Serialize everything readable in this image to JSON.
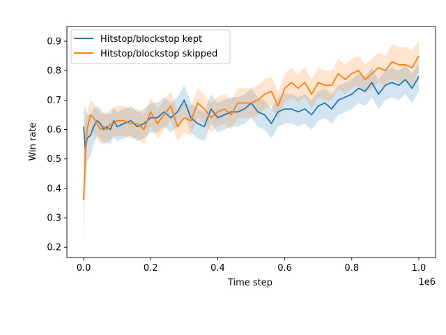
{
  "chart_data": {
    "type": "line",
    "xlabel": "Time step",
    "ylabel": "Win rate",
    "x_offset_label": "1e6",
    "xlim": [
      -50000,
      1050000
    ],
    "ylim": [
      0.165,
      0.95
    ],
    "x_ticks": [
      0,
      200000,
      400000,
      600000,
      800000,
      1000000
    ],
    "x_tick_labels": [
      "0.0",
      "0.2",
      "0.4",
      "0.6",
      "0.8",
      "1.0"
    ],
    "y_ticks": [
      0.2,
      0.3,
      0.4,
      0.5,
      0.6,
      0.7,
      0.8,
      0.9
    ],
    "y_tick_labels": [
      "0.2",
      "0.3",
      "0.4",
      "0.5",
      "0.6",
      "0.7",
      "0.8",
      "0.9"
    ],
    "grid": false,
    "legend_position": "top-left",
    "x": [
      0,
      5000,
      10000,
      20000,
      30000,
      40000,
      50000,
      60000,
      70000,
      80000,
      90000,
      100000,
      120000,
      140000,
      160000,
      180000,
      200000,
      220000,
      240000,
      260000,
      280000,
      300000,
      320000,
      340000,
      360000,
      380000,
      400000,
      420000,
      440000,
      460000,
      480000,
      500000,
      520000,
      540000,
      560000,
      580000,
      600000,
      620000,
      640000,
      660000,
      680000,
      700000,
      720000,
      740000,
      760000,
      780000,
      800000,
      820000,
      840000,
      860000,
      880000,
      900000,
      920000,
      940000,
      960000,
      980000,
      1000000
    ],
    "series": [
      {
        "name": "Hitstop/blockstop kept",
        "color": "#1f77b4",
        "values": [
          0.61,
          0.53,
          0.57,
          0.58,
          0.61,
          0.63,
          0.62,
          0.6,
          0.61,
          0.6,
          0.63,
          0.61,
          0.62,
          0.63,
          0.61,
          0.62,
          0.64,
          0.64,
          0.66,
          0.64,
          0.66,
          0.7,
          0.64,
          0.62,
          0.61,
          0.67,
          0.64,
          0.65,
          0.66,
          0.66,
          0.67,
          0.69,
          0.66,
          0.65,
          0.62,
          0.66,
          0.67,
          0.67,
          0.66,
          0.67,
          0.65,
          0.68,
          0.69,
          0.67,
          0.7,
          0.71,
          0.72,
          0.74,
          0.73,
          0.76,
          0.72,
          0.75,
          0.76,
          0.75,
          0.77,
          0.74,
          0.78
        ],
        "band": [
          0.05,
          0.15,
          0.08,
          0.07,
          0.06,
          0.05,
          0.05,
          0.05,
          0.05,
          0.05,
          0.05,
          0.05,
          0.05,
          0.05,
          0.05,
          0.05,
          0.05,
          0.05,
          0.05,
          0.05,
          0.05,
          0.05,
          0.05,
          0.05,
          0.05,
          0.05,
          0.05,
          0.05,
          0.05,
          0.05,
          0.05,
          0.05,
          0.05,
          0.05,
          0.05,
          0.05,
          0.05,
          0.05,
          0.05,
          0.05,
          0.05,
          0.05,
          0.05,
          0.05,
          0.05,
          0.05,
          0.05,
          0.05,
          0.05,
          0.05,
          0.05,
          0.05,
          0.05,
          0.05,
          0.05,
          0.05,
          0.05
        ]
      },
      {
        "name": "Hitstop/blockstop skipped",
        "color": "#ff7f0e",
        "values": [
          0.36,
          0.52,
          0.6,
          0.65,
          0.64,
          0.62,
          0.6,
          0.61,
          0.6,
          0.62,
          0.62,
          0.63,
          0.63,
          0.62,
          0.62,
          0.6,
          0.66,
          0.62,
          0.65,
          0.68,
          0.61,
          0.64,
          0.63,
          0.69,
          0.67,
          0.64,
          0.66,
          0.67,
          0.65,
          0.69,
          0.69,
          0.69,
          0.7,
          0.72,
          0.73,
          0.68,
          0.74,
          0.76,
          0.74,
          0.76,
          0.72,
          0.76,
          0.75,
          0.75,
          0.79,
          0.77,
          0.79,
          0.8,
          0.77,
          0.79,
          0.81,
          0.8,
          0.83,
          0.82,
          0.82,
          0.81,
          0.85
        ],
        "band": [
          0.15,
          0.12,
          0.06,
          0.05,
          0.05,
          0.05,
          0.05,
          0.05,
          0.05,
          0.05,
          0.05,
          0.05,
          0.05,
          0.05,
          0.05,
          0.05,
          0.05,
          0.05,
          0.05,
          0.05,
          0.05,
          0.05,
          0.05,
          0.05,
          0.05,
          0.05,
          0.05,
          0.05,
          0.05,
          0.05,
          0.05,
          0.05,
          0.05,
          0.05,
          0.05,
          0.05,
          0.05,
          0.05,
          0.05,
          0.05,
          0.05,
          0.05,
          0.05,
          0.05,
          0.05,
          0.05,
          0.05,
          0.05,
          0.05,
          0.05,
          0.05,
          0.05,
          0.06,
          0.06,
          0.06,
          0.06,
          0.05
        ]
      }
    ]
  }
}
